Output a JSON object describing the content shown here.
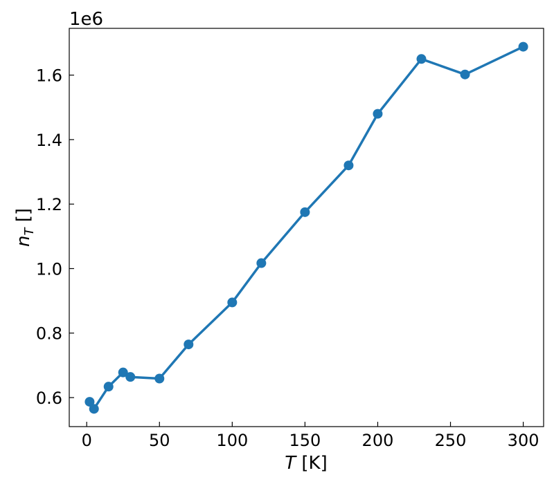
{
  "chart_data": {
    "type": "line",
    "title": "",
    "xlabel": {
      "var": "T",
      "unit": " [K]"
    },
    "ylabel": {
      "var": "n",
      "sub": "T",
      "unit": " []"
    },
    "y_multiplier": "1e6",
    "xlim": [
      -12,
      314
    ],
    "ylim": [
      0.51,
      1.745
    ],
    "x_ticks": [
      0,
      50,
      100,
      150,
      200,
      250,
      300
    ],
    "x_tick_labels": [
      "0",
      "50",
      "100",
      "150",
      "200",
      "250",
      "300"
    ],
    "y_ticks": [
      0.6,
      0.8,
      1.0,
      1.2,
      1.4,
      1.6
    ],
    "y_tick_labels": [
      "0.6",
      "0.8",
      "1.0",
      "1.2",
      "1.4",
      "1.6"
    ],
    "grid": false,
    "legend": false,
    "series": [
      {
        "color": "#1f77b4",
        "x": [
          2,
          5,
          15,
          25,
          30,
          50,
          70,
          100,
          120,
          150,
          180,
          200,
          230,
          260,
          300
        ],
        "y": [
          0.587,
          0.565,
          0.634,
          0.678,
          0.664,
          0.659,
          0.765,
          0.895,
          1.017,
          1.175,
          1.32,
          1.48,
          1.65,
          1.602,
          1.688
        ]
      }
    ]
  }
}
